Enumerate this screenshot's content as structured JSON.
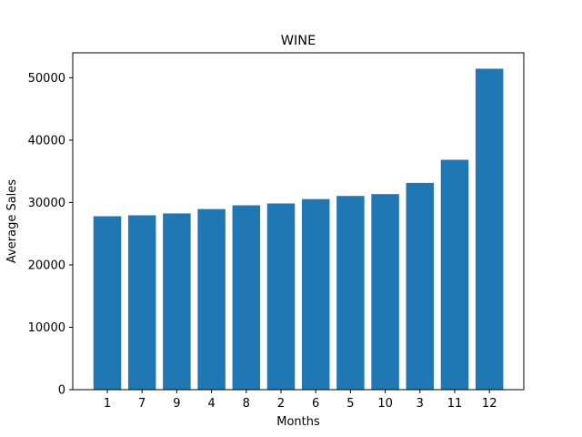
{
  "chart_data": {
    "type": "bar",
    "title": "WINE",
    "xlabel": "Months",
    "ylabel": "Average Sales",
    "categories": [
      "1",
      "7",
      "9",
      "4",
      "8",
      "2",
      "6",
      "5",
      "10",
      "3",
      "11",
      "12"
    ],
    "values": [
      27800,
      27950,
      28250,
      28950,
      29550,
      29850,
      30550,
      31050,
      31350,
      33150,
      36850,
      51450
    ],
    "ylim": [
      0,
      54000
    ],
    "yticks": [
      0,
      10000,
      20000,
      30000,
      40000,
      50000
    ],
    "ytick_labels": [
      "0",
      "10000",
      "20000",
      "30000",
      "40000",
      "50000"
    ],
    "grid": false,
    "legend": "none",
    "colors": {
      "bar": "#1f77b4",
      "axis": "#000000",
      "background": "#ffffff"
    }
  }
}
